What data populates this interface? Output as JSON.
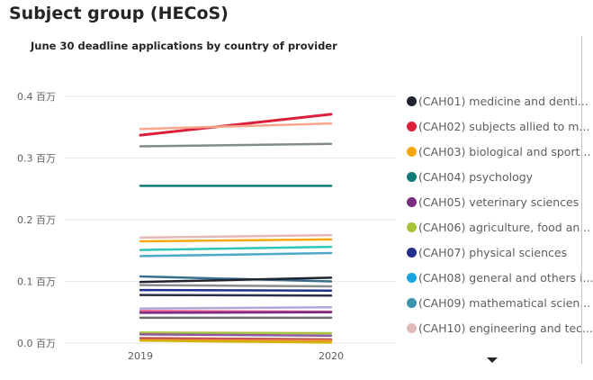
{
  "page": {
    "title": "Subject group (HECoS)"
  },
  "chart_data": {
    "type": "line",
    "title": "June 30 deadline applications by country of provider",
    "xlabel": "",
    "ylabel": "",
    "categories": [
      "2019",
      "2020"
    ],
    "ylim": [
      0,
      0.4
    ],
    "yticks": [
      0,
      0.1,
      0.2,
      0.3,
      0.4
    ],
    "ytick_labels": [
      "0.0 百万",
      "0.1 百万",
      "0.2 百万",
      "0.3 百万",
      "0.4 百万"
    ],
    "grid": true,
    "legend_position": "right",
    "legend": [
      {
        "label": "(CAH01) medicine and denti...",
        "color": "#1f2430"
      },
      {
        "label": "(CAH02) subjects allied to m...",
        "color": "#dd1f3b"
      },
      {
        "label": "(CAH03) biological and sport...",
        "color": "#f5a70f"
      },
      {
        "label": "(CAH04) psychology",
        "color": "#117a78"
      },
      {
        "label": "(CAH05) veterinary sciences",
        "color": "#7b2d84"
      },
      {
        "label": "(CAH06) agriculture, food an...",
        "color": "#a8c23a"
      },
      {
        "label": "(CAH07) physical sciences",
        "color": "#22308c"
      },
      {
        "label": "(CAH08) general and others i...",
        "color": "#1aa4e0"
      },
      {
        "label": "(CAH09) mathematical scien...",
        "color": "#3a95ad"
      },
      {
        "label": "(CAH10) engineering and tec...",
        "color": "#e3b9b7"
      }
    ],
    "series": [
      {
        "values": [
          0.337,
          0.371
        ],
        "color": "#dd1f3b"
      },
      {
        "values": [
          0.347,
          0.356
        ],
        "color": "#f9a58a"
      },
      {
        "values": [
          0.319,
          0.323
        ],
        "color": "#7f8c8a"
      },
      {
        "values": [
          0.255,
          0.255
        ],
        "color": "#117a78"
      },
      {
        "values": [
          0.171,
          0.175
        ],
        "color": "#e3b9b7"
      },
      {
        "values": [
          0.165,
          0.168
        ],
        "color": "#f5a70f"
      },
      {
        "values": [
          0.151,
          0.156
        ],
        "color": "#2ec4b6"
      },
      {
        "values": [
          0.141,
          0.146
        ],
        "color": "#4fa8c6"
      },
      {
        "values": [
          0.108,
          0.1
        ],
        "color": "#3a6e8f"
      },
      {
        "values": [
          0.099,
          0.106
        ],
        "color": "#1f2430"
      },
      {
        "values": [
          0.094,
          0.092
        ],
        "color": "#8c8c8c"
      },
      {
        "values": [
          0.086,
          0.085
        ],
        "color": "#22308c"
      },
      {
        "values": [
          0.078,
          0.077
        ],
        "color": "#2b2f45"
      },
      {
        "values": [
          0.056,
          0.058
        ],
        "color": "#b4a7d6"
      },
      {
        "values": [
          0.052,
          0.051
        ],
        "color": "#e75a8a"
      },
      {
        "values": [
          0.049,
          0.05
        ],
        "color": "#7b2d84"
      },
      {
        "values": [
          0.041,
          0.041
        ],
        "color": "#6d6d6d"
      },
      {
        "values": [
          0.017,
          0.016
        ],
        "color": "#a8c23a"
      },
      {
        "values": [
          0.014,
          0.012
        ],
        "color": "#8e5a9e"
      },
      {
        "values": [
          0.008,
          0.006
        ],
        "color": "#c14b4b"
      },
      {
        "values": [
          0.005,
          0.004
        ],
        "color": "#f0883e"
      },
      {
        "values": [
          0.004,
          0.001
        ],
        "color": "#d4b300"
      }
    ]
  }
}
